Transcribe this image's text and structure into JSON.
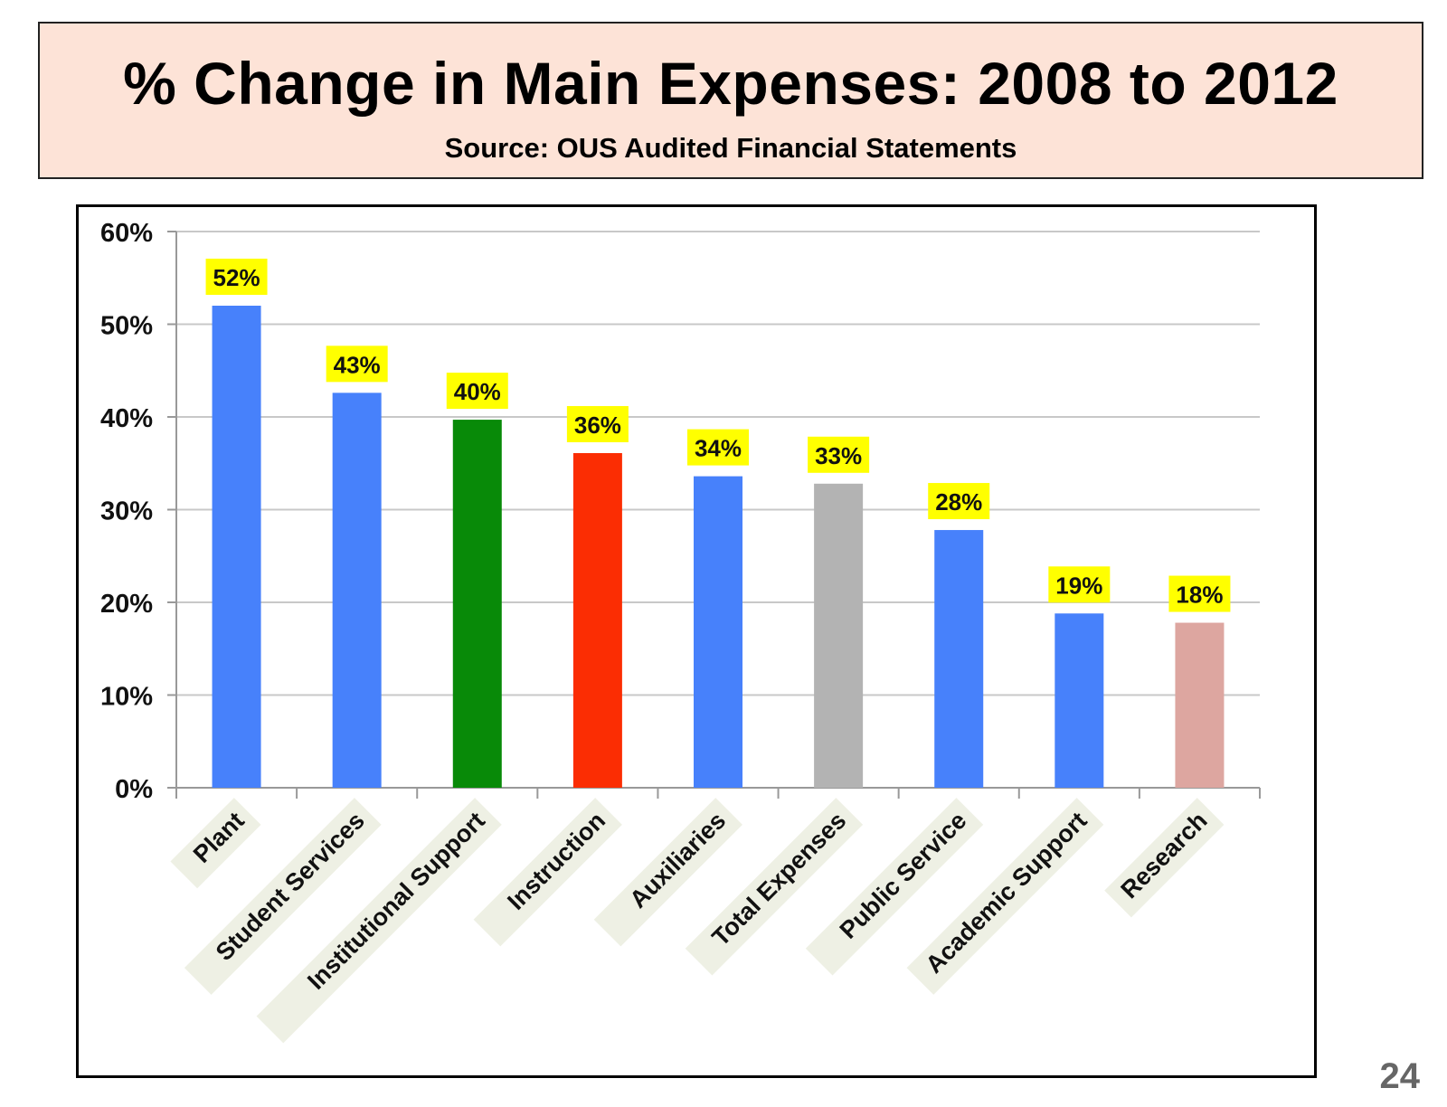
{
  "slide": {
    "title": "% Change in Main Expenses: 2008 to 2012",
    "subtitle": "Source: OUS Audited Financial Statements",
    "page_number": "24"
  },
  "chart_data": {
    "type": "bar",
    "title": "",
    "xlabel": "",
    "ylabel": "",
    "ylim": [
      0,
      60
    ],
    "yticks": [
      0,
      10,
      20,
      30,
      40,
      50,
      60
    ],
    "ytick_labels": [
      "0%",
      "10%",
      "20%",
      "30%",
      "40%",
      "50%",
      "60%"
    ],
    "grid": true,
    "categories": [
      "Plant",
      "Student Services",
      "Institutional Support",
      "Instruction",
      "Auxiliaries",
      "Total Expenses",
      "Public Service",
      "Academic Support",
      "Research"
    ],
    "values": [
      52,
      42.6,
      39.7,
      36.1,
      33.6,
      32.8,
      27.8,
      18.8,
      17.8
    ],
    "data_labels": [
      "52%",
      "43%",
      "40%",
      "36%",
      "34%",
      "33%",
      "28%",
      "19%",
      "18%"
    ],
    "bar_colors": [
      "#4781fb",
      "#4781fb",
      "#088a08",
      "#fb2d03",
      "#4781fb",
      "#b3b3b3",
      "#4781fb",
      "#4781fb",
      "#dda6a0"
    ],
    "data_label_highlight": "#ffff00",
    "category_label_background": "#eef0e4"
  }
}
